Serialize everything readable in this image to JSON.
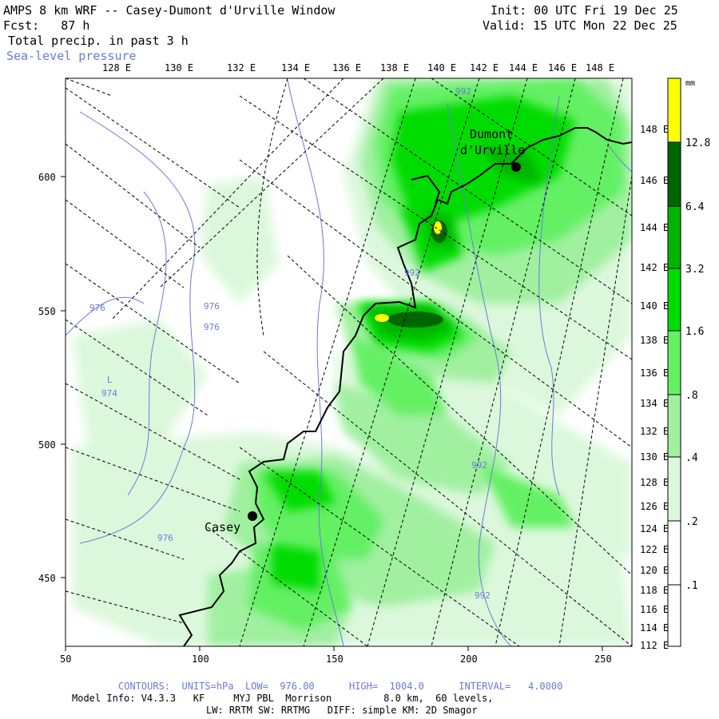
{
  "header": {
    "title": "AMPS 8 km WRF -- Casey-Dumont d'Urville Window",
    "init": "Init: 00 UTC Fri 19 Dec 25",
    "fcst": "Fcst:   87 h",
    "valid": "Valid: 15 UTC Mon 22 Dec 25",
    "field": "Total precip. in past 3 h",
    "overlay": "Sea-level pressure"
  },
  "top_lon_labels": [
    "128 E",
    "130 E",
    "132 E",
    "134 E",
    "136 E",
    "138 E",
    "140 E",
    "142 E",
    "144 E",
    "146 E",
    "148 E"
  ],
  "right_lon_labels": [
    "148 E",
    "146 E",
    "144 E",
    "142 E",
    "140 E",
    "138 E",
    "136 E",
    "134 E",
    "132 E",
    "130 E",
    "128 E",
    "126 E",
    "124 E",
    "122 E",
    "120 E",
    "118 E",
    "116 E",
    "114 E",
    "112 E"
  ],
  "x_axis": {
    "ticks": [
      "50",
      "100",
      "150",
      "200",
      "250"
    ]
  },
  "y_axis": {
    "ticks": [
      "600",
      "550",
      "500",
      "450"
    ]
  },
  "places": [
    {
      "name": "Casey"
    },
    {
      "name": "Dumont"
    },
    {
      "name": "d'Urville"
    }
  ],
  "contour_labels": [
    "992",
    "992",
    "976",
    "976",
    "976",
    "974",
    "L",
    "992",
    "992",
    "976"
  ],
  "legend": {
    "unit": "mm",
    "levels": [
      "12.8",
      "6.4",
      "3.2",
      "1.6",
      ".8",
      ".4",
      ".2",
      ".1"
    ],
    "colors": [
      "#ffff00",
      "#006600",
      "#00b400",
      "#00dc00",
      "#64f064",
      "#a0f0a0",
      "#dcf8dc",
      "#ffffff"
    ]
  },
  "footer": {
    "contours": "CONTOURS:  UNITS=hPa  LOW=  976.00      HIGH=  1004.0      INTERVAL=   4.0000",
    "model_info": "Model Info: V4.3.3   KF     MYJ PBL  Morrison         8.0 km,  60 levels,",
    "physics": "LW: RRTM SW: RRTMG   DIFF: simple KM: 2D Smagor"
  }
}
